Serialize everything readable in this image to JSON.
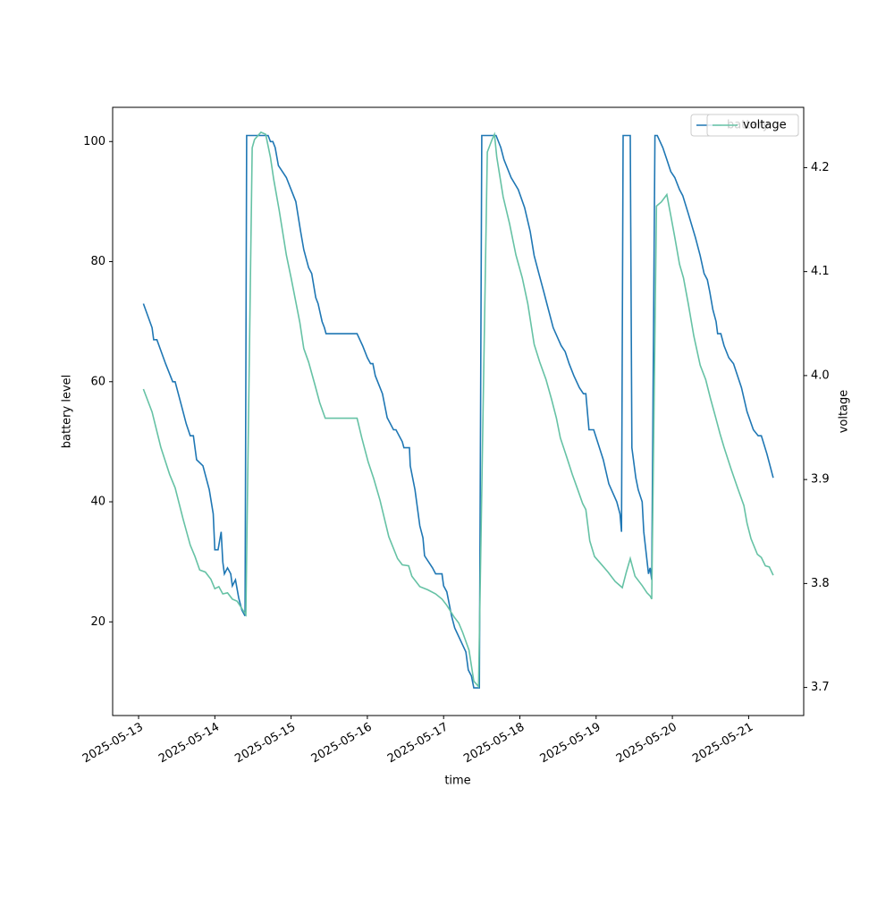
{
  "chart_data": {
    "type": "line",
    "xlabel": "time",
    "ylabel": "battery level",
    "y2label": "voltage",
    "legend": "upper right",
    "xlim": [
      "2025-05-12T15:50",
      "2025-05-21T17:20"
    ],
    "xticks": [
      "2025-05-13",
      "2025-05-14",
      "2025-05-15",
      "2025-05-16",
      "2025-05-17",
      "2025-05-18",
      "2025-05-19",
      "2025-05-20",
      "2025-05-21"
    ],
    "ylim": [
      4.4,
      105.7
    ],
    "yticks": [
      20,
      40,
      60,
      80,
      100
    ],
    "y2lim": [
      3.673,
      4.258
    ],
    "y2ticks": [
      3.7,
      3.8,
      3.9,
      {
        "value": 4,
        "label": "4.0"
      },
      4.1,
      4.2
    ],
    "series": [
      {
        "name": "battery",
        "color": "#1f77b4",
        "x": [
          "2025-05-13T01:30",
          "2025-05-13T04:15",
          "2025-05-13T04:45",
          "2025-05-13T05:45",
          "2025-05-13T08:30",
          "2025-05-13T10:45",
          "2025-05-13T11:30",
          "2025-05-13T13:30",
          "2025-05-13T15:00",
          "2025-05-13T16:15",
          "2025-05-13T17:15",
          "2025-05-13T18:15",
          "2025-05-13T20:15",
          "2025-05-13T22:15",
          "2025-05-13T23:30",
          "2025-05-14T00:00",
          "2025-05-14T01:00",
          "2025-05-14T02:00",
          "2025-05-14T02:30",
          "2025-05-14T03:00",
          "2025-05-14T04:00",
          "2025-05-14T05:00",
          "2025-05-14T05:30",
          "2025-05-14T06:30",
          "2025-05-14T07:30",
          "2025-05-14T08:30",
          "2025-05-14T09:30",
          "2025-05-14T10:00",
          "2025-05-14T16:45",
          "2025-05-14T17:30",
          "2025-05-14T18:15",
          "2025-05-14T19:00",
          "2025-05-14T20:00",
          "2025-05-14T22:30",
          "2025-05-15T01:30",
          "2025-05-15T03:00",
          "2025-05-15T04:00",
          "2025-05-15T05:30",
          "2025-05-15T06:30",
          "2025-05-15T07:45",
          "2025-05-15T08:30",
          "2025-05-15T09:45",
          "2025-05-15T10:30",
          "2025-05-15T11:00",
          "2025-05-15T20:45",
          "2025-05-15T22:30",
          "2025-05-16T00:00",
          "2025-05-16T01:00",
          "2025-05-16T01:45",
          "2025-05-16T02:30",
          "2025-05-16T04:45",
          "2025-05-16T06:15",
          "2025-05-16T08:15",
          "2025-05-16T09:00",
          "2025-05-16T11:00",
          "2025-05-16T11:30",
          "2025-05-16T13:15",
          "2025-05-16T13:30",
          "2025-05-16T15:00",
          "2025-05-16T16:30",
          "2025-05-16T17:30",
          "2025-05-16T18:00",
          "2025-05-16T20:30",
          "2025-05-16T21:30",
          "2025-05-16T23:30",
          "2025-05-17T00:00",
          "2025-05-17T01:00",
          "2025-05-17T02:30",
          "2025-05-17T03:30",
          "2025-05-17T07:00",
          "2025-05-17T07:45",
          "2025-05-17T08:45",
          "2025-05-17T09:30",
          "2025-05-17T11:15",
          "2025-05-17T12:00",
          "2025-05-17T16:00",
          "2025-05-17T16:30",
          "2025-05-17T18:00",
          "2025-05-17T19:00",
          "2025-05-17T21:15",
          "2025-05-17T23:30",
          "2025-05-18T01:30",
          "2025-05-18T03:15",
          "2025-05-18T04:30",
          "2025-05-18T06:00",
          "2025-05-18T07:30",
          "2025-05-18T08:30",
          "2025-05-18T10:30",
          "2025-05-18T13:00",
          "2025-05-18T14:15",
          "2025-05-18T15:30",
          "2025-05-18T17:00",
          "2025-05-18T18:45",
          "2025-05-18T20:00",
          "2025-05-18T20:45",
          "2025-05-18T21:45",
          "2025-05-18T23:15",
          "2025-05-19T02:15",
          "2025-05-19T04:00",
          "2025-05-19T06:30",
          "2025-05-19T07:30",
          "2025-05-19T08:00",
          "2025-05-19T08:30",
          "2025-05-19T10:45",
          "2025-05-19T11:15",
          "2025-05-19T12:30",
          "2025-05-19T13:15",
          "2025-05-19T14:30",
          "2025-05-19T15:00",
          "2025-05-19T16:30",
          "2025-05-19T17:00",
          "2025-05-19T17:30",
          "2025-05-19T18:30",
          "2025-05-19T19:15",
          "2025-05-19T21:00",
          "2025-05-19T22:15",
          "2025-05-19T23:30",
          "2025-05-20T00:45",
          "2025-05-20T02:15",
          "2025-05-20T03:15",
          "2025-05-20T05:00",
          "2025-05-20T07:15",
          "2025-05-20T08:45",
          "2025-05-20T10:00",
          "2025-05-20T11:00",
          "2025-05-20T11:45",
          "2025-05-20T12:45",
          "2025-05-20T13:45",
          "2025-05-20T14:15",
          "2025-05-20T15:15",
          "2025-05-20T16:15",
          "2025-05-20T17:45",
          "2025-05-20T19:15",
          "2025-05-20T21:45",
          "2025-05-20T23:30",
          "2025-05-21T01:30",
          "2025-05-21T03:00",
          "2025-05-21T04:00",
          "2025-05-21T05:45",
          "2025-05-21T07:45"
        ],
        "values": [
          73,
          69,
          67,
          67,
          63,
          60,
          60,
          56,
          53,
          51,
          51,
          47,
          46,
          42,
          38,
          32,
          32,
          35,
          30,
          28,
          29,
          28,
          26,
          27,
          24,
          22,
          21,
          101,
          101,
          100,
          100,
          99,
          96,
          94,
          90,
          85,
          82,
          79,
          78,
          74,
          73,
          70,
          69,
          68,
          68,
          66,
          64,
          63,
          63,
          61,
          58,
          54,
          52,
          52,
          50,
          49,
          49,
          46,
          42,
          36,
          34,
          31,
          29,
          28,
          28,
          26,
          25,
          21,
          19,
          15,
          12,
          11,
          9,
          9,
          101,
          101,
          101,
          99,
          97,
          94,
          92,
          89,
          85,
          81,
          78,
          75,
          73,
          69,
          66,
          65,
          63,
          61,
          59,
          58,
          58,
          52,
          52,
          47,
          43,
          40,
          38,
          35,
          101,
          101,
          49,
          44,
          42,
          40,
          35,
          28,
          29,
          27,
          101,
          101,
          99,
          97,
          95,
          94,
          92,
          91,
          88,
          84,
          81,
          78,
          77,
          75,
          72,
          70,
          68,
          68,
          66,
          64,
          63,
          59,
          55,
          52,
          51,
          51,
          48,
          44
        ]
      },
      {
        "name": "voltage",
        "color": "#66c2a5",
        "axis": "y2",
        "x": [
          "2025-05-13T01:30",
          "2025-05-13T04:15",
          "2025-05-13T07:00",
          "2025-05-13T09:45",
          "2025-05-13T11:30",
          "2025-05-13T14:00",
          "2025-05-13T16:15",
          "2025-05-13T17:45",
          "2025-05-13T19:15",
          "2025-05-13T21:00",
          "2025-05-13T22:45",
          "2025-05-14T00:00",
          "2025-05-14T01:15",
          "2025-05-14T02:30",
          "2025-05-14T04:00",
          "2025-05-14T05:30",
          "2025-05-14T07:00",
          "2025-05-14T08:30",
          "2025-05-14T09:45",
          "2025-05-14T11:45",
          "2025-05-14T12:30",
          "2025-05-14T14:30",
          "2025-05-14T16:00",
          "2025-05-14T17:30",
          "2025-05-14T18:30",
          "2025-05-14T20:15",
          "2025-05-14T22:30",
          "2025-05-15T00:00",
          "2025-05-15T02:45",
          "2025-05-15T04:00",
          "2025-05-15T05:30",
          "2025-05-15T07:30",
          "2025-05-15T09:00",
          "2025-05-15T10:45",
          "2025-05-15T20:45",
          "2025-05-15T22:15",
          "2025-05-16T00:15",
          "2025-05-16T02:00",
          "2025-05-16T04:00",
          "2025-05-16T06:45",
          "2025-05-16T09:30",
          "2025-05-16T11:00",
          "2025-05-16T13:00",
          "2025-05-16T14:00",
          "2025-05-16T16:30",
          "2025-05-16T19:00",
          "2025-05-16T21:30",
          "2025-05-16T23:30",
          "2025-05-17T01:00",
          "2025-05-17T03:15",
          "2025-05-17T04:45",
          "2025-05-17T06:00",
          "2025-05-17T08:00",
          "2025-05-17T09:30",
          "2025-05-17T11:00",
          "2025-05-17T13:45",
          "2025-05-17T15:15",
          "2025-05-17T16:00",
          "2025-05-17T16:45",
          "2025-05-17T18:45",
          "2025-05-17T20:45",
          "2025-05-17T22:45",
          "2025-05-18T00:45",
          "2025-05-18T02:30",
          "2025-05-18T04:30",
          "2025-05-18T06:15",
          "2025-05-18T08:15",
          "2025-05-18T10:00",
          "2025-05-18T11:30",
          "2025-05-18T12:45",
          "2025-05-18T14:30",
          "2025-05-18T16:30",
          "2025-05-18T18:15",
          "2025-05-18T19:45",
          "2025-05-18T20:45",
          "2025-05-18T22:00",
          "2025-05-18T23:30",
          "2025-05-19T01:30",
          "2025-05-19T03:45",
          "2025-05-19T06:00",
          "2025-05-19T08:15",
          "2025-05-19T09:30",
          "2025-05-19T10:45",
          "2025-05-19T12:15",
          "2025-05-19T14:30",
          "2025-05-19T16:00",
          "2025-05-19T17:00",
          "2025-05-19T17:30",
          "2025-05-19T19:00",
          "2025-05-19T20:30",
          "2025-05-19T22:15",
          "2025-05-19T23:30",
          "2025-05-20T00:45",
          "2025-05-20T02:15",
          "2025-05-20T03:30",
          "2025-05-20T05:00",
          "2025-05-20T06:45",
          "2025-05-20T08:45",
          "2025-05-20T10:30",
          "2025-05-20T12:00",
          "2025-05-20T13:30",
          "2025-05-20T15:00",
          "2025-05-20T16:15",
          "2025-05-20T18:30",
          "2025-05-20T20:30",
          "2025-05-20T22:30",
          "2025-05-20T23:30",
          "2025-05-21T00:45",
          "2025-05-21T02:45",
          "2025-05-21T04:00",
          "2025-05-21T05:15",
          "2025-05-21T06:30",
          "2025-05-21T07:45"
        ],
        "values": [
          3.987,
          3.965,
          3.931,
          3.905,
          3.892,
          3.862,
          3.837,
          3.826,
          3.813,
          3.811,
          3.804,
          3.795,
          3.797,
          3.79,
          3.791,
          3.785,
          3.783,
          3.776,
          3.77,
          4.219,
          4.227,
          4.234,
          4.232,
          4.21,
          4.189,
          4.159,
          4.116,
          4.094,
          4.051,
          4.026,
          4.013,
          3.991,
          3.974,
          3.959,
          3.959,
          3.94,
          3.917,
          3.901,
          3.88,
          3.845,
          3.824,
          3.818,
          3.817,
          3.807,
          3.797,
          3.794,
          3.79,
          3.785,
          3.779,
          3.768,
          3.762,
          3.753,
          3.736,
          3.706,
          3.701,
          4.215,
          4.227,
          4.232,
          4.21,
          4.172,
          4.146,
          4.116,
          4.094,
          4.069,
          4.03,
          4.013,
          3.996,
          3.977,
          3.959,
          3.94,
          3.924,
          3.905,
          3.89,
          3.877,
          3.871,
          3.841,
          3.826,
          3.819,
          3.811,
          3.802,
          3.796,
          3.811,
          3.824,
          3.807,
          3.798,
          3.791,
          3.788,
          3.785,
          4.163,
          4.167,
          4.174,
          4.154,
          4.133,
          4.107,
          4.094,
          4.069,
          4.038,
          4.01,
          3.996,
          3.978,
          3.961,
          3.944,
          3.931,
          3.91,
          3.892,
          3.875,
          3.858,
          3.843,
          3.828,
          3.825,
          3.817,
          3.816,
          3.808
        ]
      }
    ]
  }
}
